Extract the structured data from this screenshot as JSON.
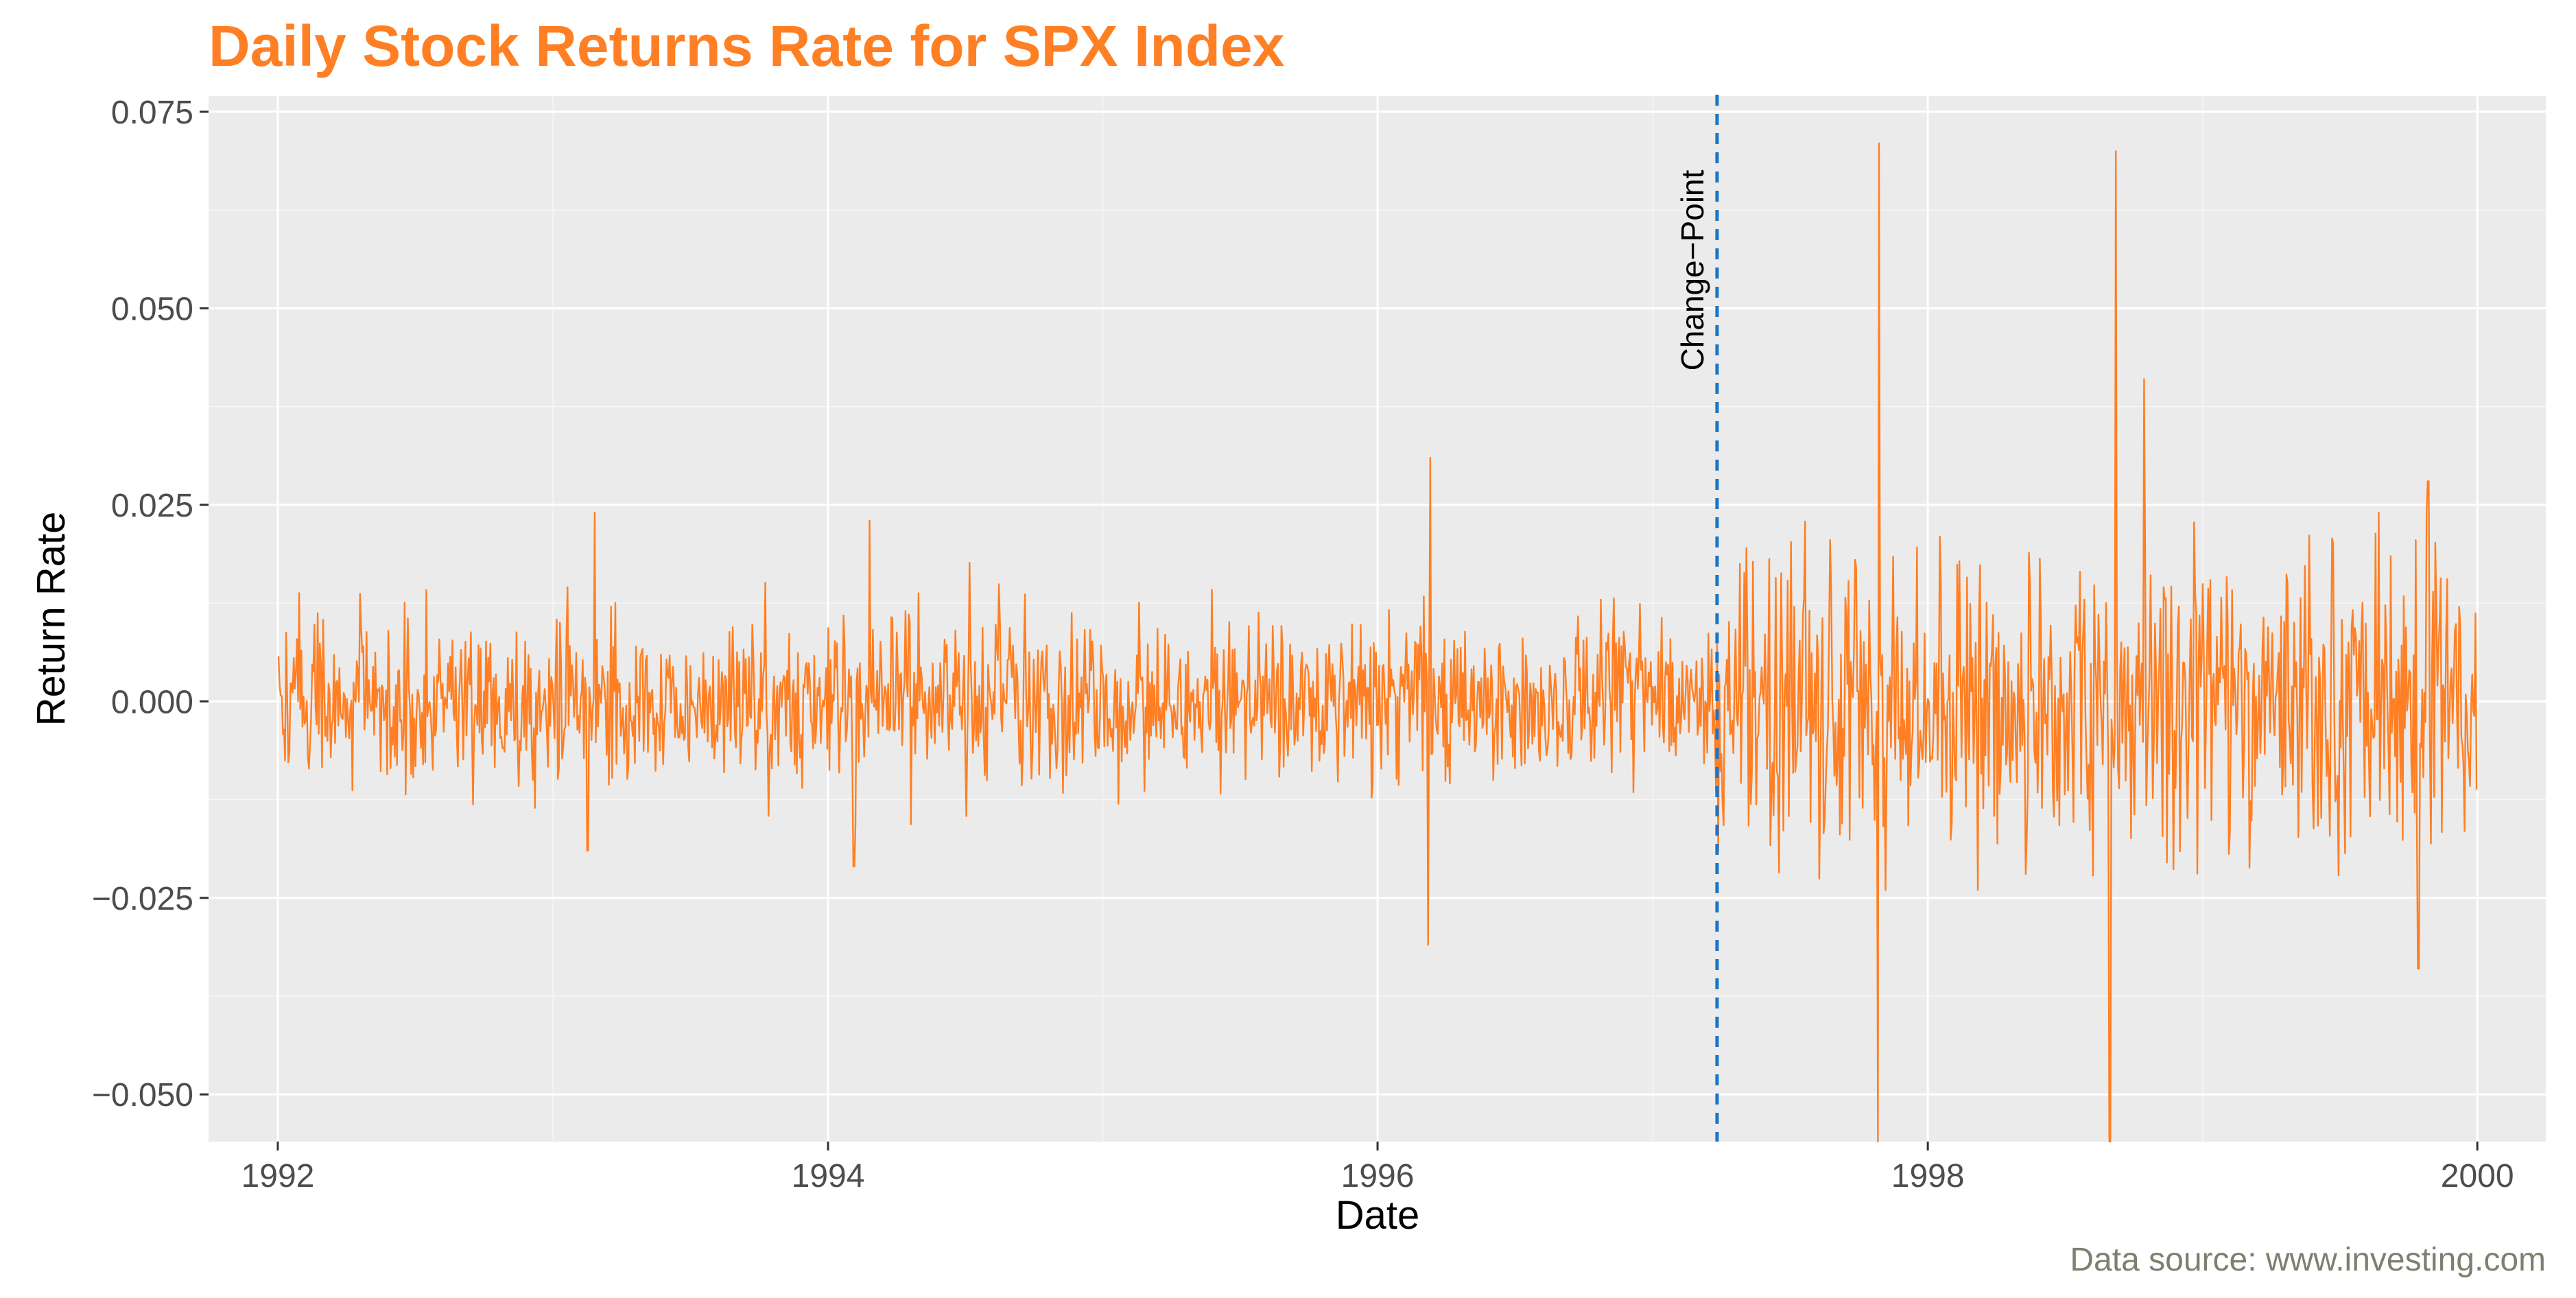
{
  "chart_data": {
    "type": "line",
    "title": "Daily Stock Returns Rate for SPX Index",
    "xlabel": "Date",
    "ylabel": "Return Rate",
    "caption": "Data source: www.investing.com",
    "xlim": [
      "1991-10-01",
      "2000-04-01"
    ],
    "ylim": [
      -0.056,
      0.077
    ],
    "x_ticks": [
      "1992-01-01",
      "1994-01-01",
      "1996-01-01",
      "1998-01-01",
      "2000-01-01"
    ],
    "x_tick_labels": [
      "1992",
      "1994",
      "1996",
      "1998",
      "2000"
    ],
    "y_ticks": [
      -0.05,
      -0.025,
      0.0,
      0.025,
      0.05,
      0.075
    ],
    "y_tick_labels": [
      "−0.050",
      "−0.025",
      "0.000",
      "0.025",
      "0.050",
      "0.075"
    ],
    "grid": true,
    "legend": "none",
    "colors": {
      "series": "#FF7F24",
      "changepoint": "#1874CD",
      "panel": "#EBEBEB",
      "title": "#FF7F24",
      "caption": "#7F7F6F"
    },
    "series": [
      {
        "x_start": "1992-01-02",
        "x_end": "1999-12-31",
        "n_points": 2024,
        "segments": [
          {
            "from": "1992-01-02",
            "to": "1997-03-26",
            "typical_abs_return": 0.006
          },
          {
            "from": "1997-03-27",
            "to": "1999-12-31",
            "typical_abs_return": 0.011
          }
        ],
        "notable_points": [
          {
            "x": "1993-02-16",
            "y": -0.019
          },
          {
            "x": "1993-02-25",
            "y": 0.024
          },
          {
            "x": "1994-02-04",
            "y": -0.021
          },
          {
            "x": "1994-02-25",
            "y": 0.023
          },
          {
            "x": "1996-03-08",
            "y": -0.031
          },
          {
            "x": "1996-03-11",
            "y": 0.031
          },
          {
            "x": "1997-10-27",
            "y": -0.069
          },
          {
            "x": "1997-10-28",
            "y": 0.071
          },
          {
            "x": "1998-08-31",
            "y": -0.068
          },
          {
            "x": "1998-09-08",
            "y": 0.07
          },
          {
            "x": "1998-10-15",
            "y": 0.041
          },
          {
            "x": "1999-10-15",
            "y": -0.034
          },
          {
            "x": "1999-10-28",
            "y": 0.028
          }
        ]
      }
    ],
    "annotations": [
      {
        "type": "vline",
        "x": "1997-03-27",
        "label": "Change−Point"
      }
    ]
  }
}
